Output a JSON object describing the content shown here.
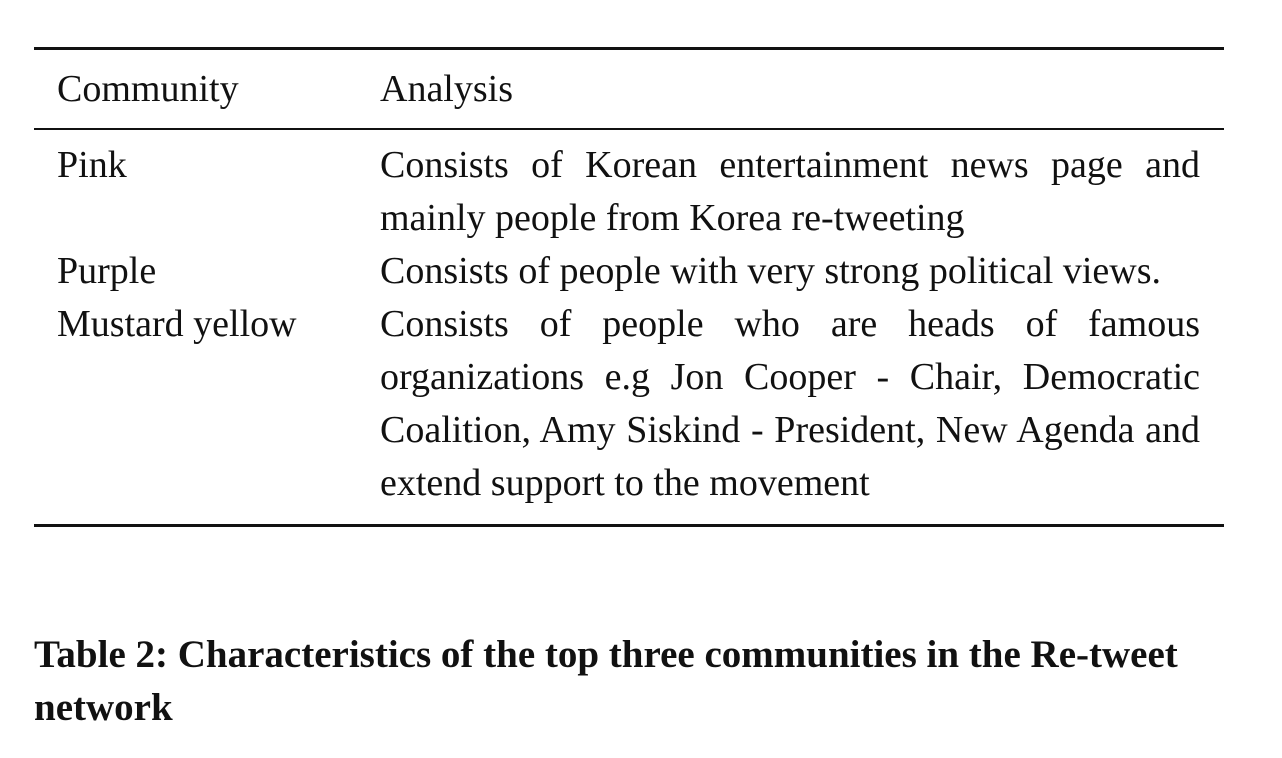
{
  "table": {
    "headers": {
      "community": "Community",
      "analysis": "Analysis"
    },
    "rows": [
      {
        "community": "Pink",
        "analysis": "Consists of Korean entertainment news page and mainly people from Korea re-tweeting"
      },
      {
        "community": "Purple",
        "analysis": "Consists of people with very strong political views."
      },
      {
        "community": "Mustard yellow",
        "analysis": "Consists of people who are heads of famous organizations e.g Jon Cooper - Chair, Democratic Coalition, Amy Siskind - President, New Agenda and extend support to the movement"
      }
    ]
  },
  "caption": "Table 2: Characteristics of the top three communities in the Re-tweet network"
}
